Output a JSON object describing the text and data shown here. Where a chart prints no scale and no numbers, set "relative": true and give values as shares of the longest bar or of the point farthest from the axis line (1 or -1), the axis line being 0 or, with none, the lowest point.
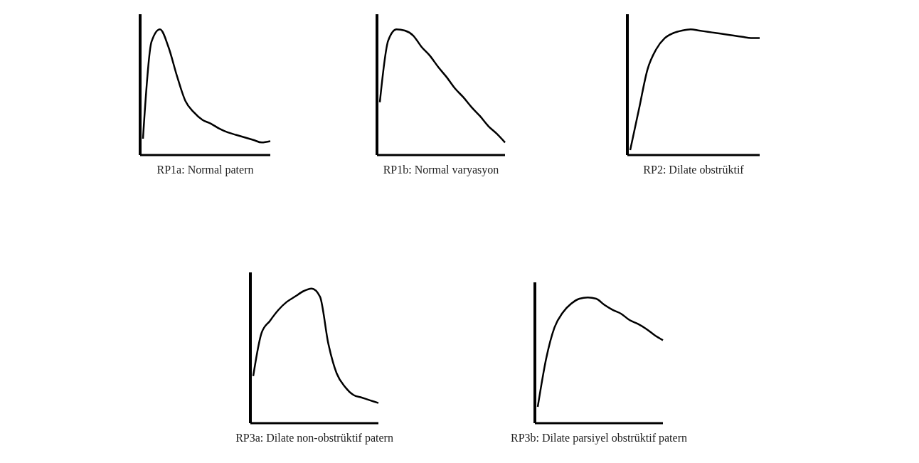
{
  "chart_data": [
    {
      "type": "line",
      "relative": true,
      "xlabel": "RP1a: Normal patern",
      "grid": false,
      "legend": false,
      "marker": "none",
      "line_style": "solid",
      "categories": [
        null,
        null,
        null,
        null,
        null,
        null,
        null,
        null,
        null,
        null,
        null,
        null,
        null,
        null,
        null,
        null
      ],
      "series": [
        {
          "color": "#000000",
          "values": [
            0.13,
            0.9,
            1.0,
            0.86,
            0.63,
            0.43,
            0.34,
            0.28,
            0.25,
            0.21,
            0.18,
            0.16,
            0.14,
            0.12,
            0.1,
            0.11
          ]
        }
      ]
    },
    {
      "type": "line",
      "relative": true,
      "xlabel": "RP1b: Normal varyasyon",
      "grid": false,
      "legend": false,
      "marker": "none",
      "line_style": "solid",
      "categories": [
        null,
        null,
        null,
        null,
        null,
        null,
        null,
        null,
        null,
        null,
        null,
        null,
        null,
        null,
        null,
        null
      ],
      "series": [
        {
          "color": "#000000",
          "values": [
            0.42,
            0.91,
            1.0,
            0.99,
            0.95,
            0.86,
            0.79,
            0.7,
            0.62,
            0.53,
            0.46,
            0.38,
            0.31,
            0.23,
            0.17,
            0.1
          ]
        }
      ]
    },
    {
      "type": "line",
      "relative": true,
      "xlabel": "RP2: Dilate obstrüktif",
      "grid": false,
      "legend": false,
      "marker": "none",
      "line_style": "solid",
      "categories": [
        null,
        null,
        null,
        null,
        null,
        null,
        null,
        null,
        null,
        null,
        null,
        null,
        null,
        null,
        null,
        null
      ],
      "series": [
        {
          "color": "#000000",
          "values": [
            0.04,
            0.36,
            0.68,
            0.84,
            0.93,
            0.97,
            0.99,
            1.0,
            0.99,
            0.98,
            0.97,
            0.96,
            0.95,
            0.94,
            0.93,
            0.93
          ]
        }
      ]
    },
    {
      "type": "line",
      "relative": true,
      "xlabel": "RP3a: Dilate non-obstrüktif patern",
      "grid": false,
      "legend": false,
      "marker": "none",
      "line_style": "solid",
      "categories": [
        null,
        null,
        null,
        null,
        null,
        null,
        null,
        null,
        null,
        null,
        null,
        null,
        null,
        null,
        null,
        null
      ],
      "series": [
        {
          "color": "#000000",
          "values": [
            0.35,
            0.67,
            0.76,
            0.84,
            0.9,
            0.94,
            0.98,
            1.0,
            0.94,
            0.59,
            0.37,
            0.27,
            0.21,
            0.19,
            0.17,
            0.15
          ]
        }
      ]
    },
    {
      "type": "line",
      "relative": true,
      "xlabel": "RP3b: Dilate parsiyel obstrüktif patern",
      "grid": false,
      "legend": false,
      "marker": "none",
      "line_style": "solid",
      "categories": [
        null,
        null,
        null,
        null,
        null,
        null,
        null,
        null,
        null,
        null,
        null,
        null,
        null,
        null,
        null,
        null
      ],
      "series": [
        {
          "color": "#000000",
          "values": [
            0.13,
            0.51,
            0.76,
            0.88,
            0.95,
            0.99,
            1.0,
            0.99,
            0.94,
            0.9,
            0.87,
            0.82,
            0.79,
            0.75,
            0.7,
            0.66
          ]
        }
      ]
    }
  ]
}
